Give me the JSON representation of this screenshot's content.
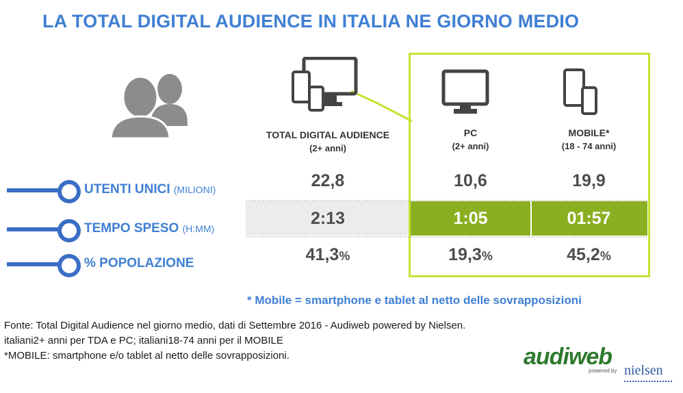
{
  "title": "LA TOTAL DIGITAL AUDIENCE IN ITALIA NE GIORNO MEDIO",
  "columns": [
    {
      "name": "TOTAL DIGITAL AUDIENCE",
      "sub": "(2+ anni)",
      "icon": "devices-icon"
    },
    {
      "name": "PC",
      "sub": "(2+ anni)",
      "icon": "monitor-icon"
    },
    {
      "name": "MOBILE*",
      "sub": "(18 - 74 anni)",
      "icon": "mobile-devices-icon"
    }
  ],
  "rows": [
    {
      "label": "UTENTI UNICI",
      "sub": "(MILIONI)",
      "values": [
        "22,8",
        "10,6",
        "19,9"
      ]
    },
    {
      "label": "TEMPO SPESO",
      "sub": "(H:MM)",
      "values": [
        "2:13",
        "1:05",
        "01:57"
      ]
    },
    {
      "label": "% POPOLAZIONE",
      "sub": "",
      "values": [
        "41,3",
        "19,3",
        "45,2"
      ],
      "unit": "%"
    }
  ],
  "note": "* Mobile = smartphone e tablet al netto delle sovrapposizioni",
  "footnotes": [
    "Fonte: Total Digital Audience nel giorno medio, dati di Settembre 2016 - Audiweb powered by Nielsen.",
    "italiani2+ anni per TDA e PC; italiani18-74 anni per il MOBILE",
    "*MOBILE: smartphone e/o tablet al netto delle sovrapposizioni."
  ],
  "logo": {
    "brand": "audiweb",
    "powered": "powered by",
    "partner": "nielsen"
  },
  "colors": {
    "title": "#3f7fd3",
    "accent_box": "#c7e233",
    "highlight": "#8ab021",
    "label_line": "#3a6ec4"
  }
}
